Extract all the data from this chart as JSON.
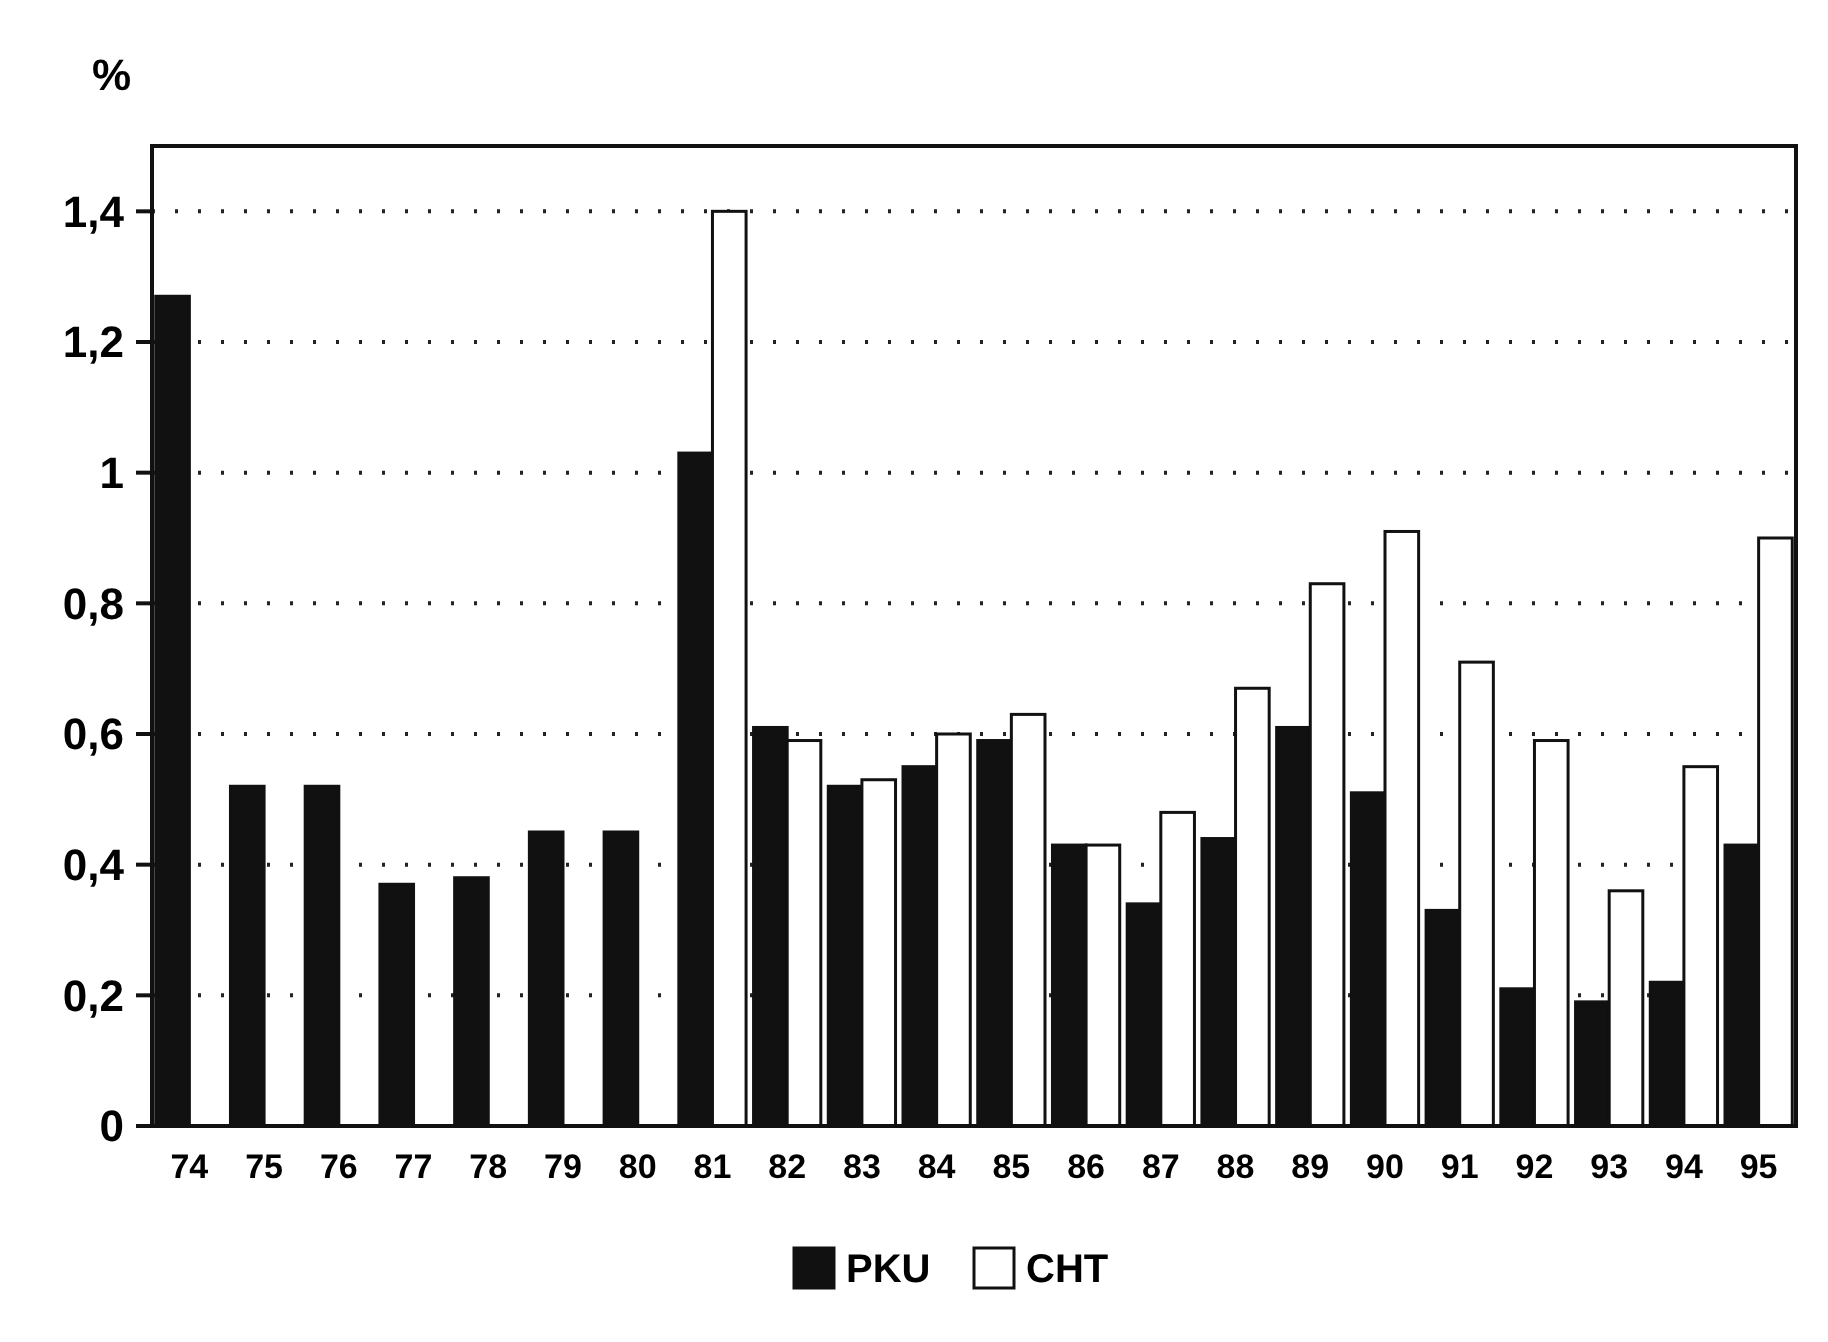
{
  "chart_data": {
    "type": "bar",
    "ylabel": "%",
    "categories": [
      "74",
      "75",
      "76",
      "77",
      "78",
      "79",
      "80",
      "81",
      "82",
      "83",
      "84",
      "85",
      "86",
      "87",
      "88",
      "89",
      "90",
      "91",
      "92",
      "93",
      "94",
      "95"
    ],
    "series": [
      {
        "name": "PKU",
        "color": "#111111",
        "values": [
          1.27,
          0.52,
          0.52,
          0.37,
          0.38,
          0.45,
          0.45,
          1.03,
          0.61,
          0.52,
          0.55,
          0.59,
          0.43,
          0.34,
          0.44,
          0.61,
          0.51,
          0.33,
          0.21,
          0.19,
          0.22,
          0.43
        ]
      },
      {
        "name": "CHT",
        "color": "#ffffff",
        "values": [
          null,
          null,
          null,
          null,
          null,
          null,
          null,
          1.4,
          0.59,
          0.53,
          0.6,
          0.63,
          0.43,
          0.48,
          0.67,
          0.83,
          0.91,
          0.71,
          0.59,
          0.36,
          0.55,
          0.9
        ]
      }
    ],
    "ylim": [
      0,
      1.5
    ],
    "yticks": [
      0,
      {
        "value": 0.2,
        "label": "0,2"
      },
      {
        "value": 0.4,
        "label": "0,4"
      },
      {
        "value": 0.6,
        "label": "0,6"
      },
      {
        "value": 0.8,
        "label": "0,8"
      },
      1,
      {
        "value": 1.2,
        "label": "1,2"
      },
      {
        "value": 1.4,
        "label": "1,4"
      }
    ],
    "grid": "y",
    "legend": "bottom"
  }
}
